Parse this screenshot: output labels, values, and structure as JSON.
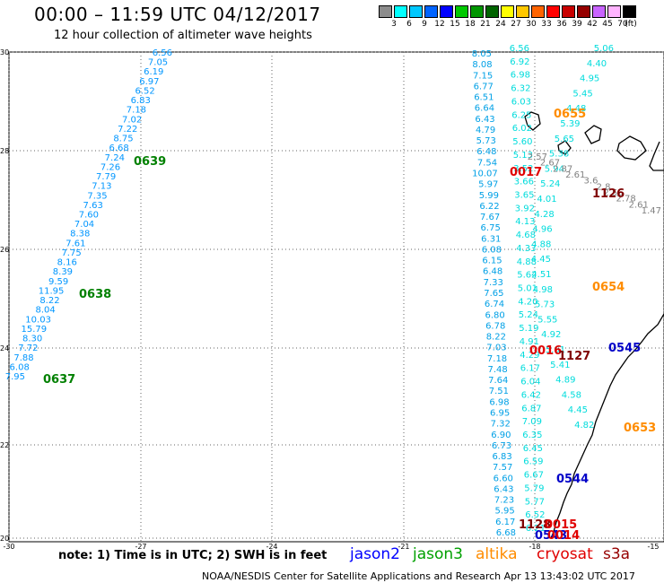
{
  "header": {
    "title": "00:00 – 11:59 UTC 04/12/2017",
    "subtitle": "12 hour collection of altimeter wave heights"
  },
  "colorbar": {
    "unit": "(ft)",
    "labels": [
      "3",
      "6",
      "9",
      "12",
      "15",
      "18",
      "21",
      "24",
      "27",
      "30",
      "33",
      "36",
      "39",
      "42",
      "45",
      "70"
    ],
    "colors": [
      "#8c8c8c",
      "#00ffff",
      "#00c8ff",
      "#0064ff",
      "#0000ff",
      "#00c800",
      "#009600",
      "#006400",
      "#ffff00",
      "#ffc800",
      "#ff6400",
      "#ff0000",
      "#c80000",
      "#960000",
      "#c864ff",
      "#ffb4ff",
      "#000000"
    ]
  },
  "map": {
    "lat_ticks": [
      "30",
      "28",
      "26",
      "24",
      "22",
      "20"
    ],
    "lon_ticks": [
      "-30",
      "-27",
      "-24",
      "-21",
      "-18",
      "-15"
    ]
  },
  "tracks": [
    {
      "color": "#0096ff",
      "labels": [
        "6.56",
        "7.05",
        "6.19",
        "6.97",
        "6.52",
        "6.83",
        "7.18",
        "7.02",
        "7.22",
        "8.75",
        "6.68",
        "7.24",
        "7.26",
        "7.79",
        "7.13",
        "7.35",
        "7.63",
        "7.60",
        "7.04",
        "8.38",
        "7.61",
        "7.75",
        "8.16",
        "8.39",
        "9.59",
        "11.95",
        "8.22",
        "8.04",
        "10.03",
        "15.79",
        "8.30",
        "7.72",
        "7.88",
        "6.08",
        "7.95"
      ]
    },
    {
      "color": "#00a0e6",
      "labels": [
        "8.05",
        "8.08",
        "7.15",
        "6.77",
        "6.51",
        "6.64",
        "6.43",
        "4.79",
        "5.73",
        "6.48",
        "7.54",
        "10.07",
        "5.97",
        "5.99",
        "6.22",
        "7.67",
        "6.75",
        "6.31",
        "6.08",
        "6.15",
        "6.48",
        "7.33",
        "7.65",
        "6.74",
        "6.80",
        "6.78",
        "8.22",
        "7.03",
        "7.18",
        "7.48",
        "7.64",
        "7.51",
        "6.98",
        "6.95",
        "7.32",
        "6.90",
        "6.73",
        "6.83",
        "7.57",
        "6.60",
        "6.43",
        "7.23",
        "5.95",
        "6.17",
        "6.68"
      ]
    },
    {
      "color": "#00dcdc",
      "labels": [
        "6.56",
        "6.92",
        "6.98",
        "6.32",
        "6.03",
        "6.25",
        "6.02",
        "5.60",
        "5.13",
        "3.52",
        "3.66",
        "3.65",
        "3.92",
        "4.13",
        "4.68",
        "4.33",
        "4.88",
        "5.62",
        "5.01",
        "4.20",
        "5.24",
        "5.19",
        "4.91",
        "4.29",
        "6.17",
        "6.04",
        "6.42",
        "6.87",
        "7.09",
        "6.35",
        "6.45",
        "6.59",
        "6.67",
        "5.79",
        "5.77",
        "6.52",
        "6.21"
      ]
    },
    {
      "color": "#00dcdc",
      "labels": [
        "5.06",
        "4.40",
        "4.95",
        "5.45",
        "4.48",
        "5.39",
        "5.65",
        "5.38",
        "5.94",
        "5.24",
        "4.01",
        "4.28",
        "4.96",
        "4.88",
        "4.45",
        "4.51",
        "4.98",
        "5.73",
        "5.55",
        "4.92",
        "5.61",
        "5.41",
        "4.89",
        "4.58",
        "4.45",
        "4.82"
      ]
    },
    {
      "color": "#808080",
      "labels": [
        "2.57",
        "2.67",
        "2.87",
        "2.61",
        "3.6",
        "2.8",
        "2.56",
        "2.78",
        "2.61",
        "1.47"
      ]
    }
  ],
  "stamps": [
    {
      "text": "0639",
      "color": "#008000"
    },
    {
      "text": "0638",
      "color": "#008000"
    },
    {
      "text": "0637",
      "color": "#008000"
    },
    {
      "text": "0655",
      "color": "#ff8c00"
    },
    {
      "text": "0017",
      "color": "#e00000"
    },
    {
      "text": "1126",
      "color": "#800000"
    },
    {
      "text": "0654",
      "color": "#ff8c00"
    },
    {
      "text": "0016",
      "color": "#e00000"
    },
    {
      "text": "1127",
      "color": "#800000"
    },
    {
      "text": "0545",
      "color": "#0000c8"
    },
    {
      "text": "0653",
      "color": "#ff8c00"
    },
    {
      "text": "0544",
      "color": "#0000c8"
    },
    {
      "text": "1128",
      "color": "#800000"
    },
    {
      "text": "0015",
      "color": "#e00000"
    },
    {
      "text": "0543",
      "color": "#0000c8"
    },
    {
      "text": "0014",
      "color": "#e00000"
    }
  ],
  "footer": {
    "note": "note: 1) Time is in UTC; 2) SWH is in feet",
    "credit": "NOAA/NESDIS Center for Satellite Applications and Research    Apr 13 13:43:02 UTC 2017"
  },
  "legend": [
    {
      "name": "jason2",
      "color": "#0000ff"
    },
    {
      "name": "jason3",
      "color": "#00a000"
    },
    {
      "name": "altika",
      "color": "#ff8c00"
    },
    {
      "name": "cryosat",
      "color": "#e00000"
    },
    {
      "name": "s3a",
      "color": "#960000"
    }
  ]
}
